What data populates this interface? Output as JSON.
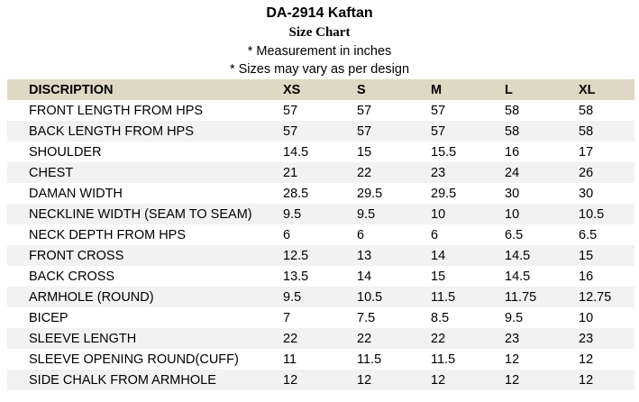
{
  "header": {
    "title": "DA-2914 Kaftan",
    "subtitle": "Size Chart",
    "note_measurement": "* Measurement in inches",
    "note_sizes": "* Sizes may vary as per design"
  },
  "table": {
    "columns": [
      "DISCRIPTION",
      "XS",
      "S",
      "M",
      "L",
      "XL"
    ],
    "rows": [
      [
        "FRONT LENGTH FROM HPS",
        "57",
        "57",
        "57",
        "58",
        "58"
      ],
      [
        "BACK LENGTH FROM HPS",
        "57",
        "57",
        "57",
        "58",
        "58"
      ],
      [
        "SHOULDER",
        "14.5",
        "15",
        "15.5",
        "16",
        "17"
      ],
      [
        "CHEST",
        "21",
        "22",
        "23",
        "24",
        "26"
      ],
      [
        "DAMAN WIDTH",
        "28.5",
        "29.5",
        "29.5",
        "30",
        "30"
      ],
      [
        "NECKLINE WIDTH (SEAM TO SEAM)",
        "9.5",
        "9.5",
        "10",
        "10",
        "10.5"
      ],
      [
        "NECK DEPTH FROM HPS",
        "6",
        "6",
        "6",
        "6.5",
        "6.5"
      ],
      [
        "FRONT CROSS",
        "12.5",
        "13",
        "14",
        "14.5",
        "15"
      ],
      [
        "BACK CROSS",
        "13.5",
        "14",
        "15",
        "14.5",
        "16"
      ],
      [
        "ARMHOLE (ROUND)",
        "9.5",
        "10.5",
        "11.5",
        "11.75",
        "12.75"
      ],
      [
        "BICEP",
        "7",
        "7.5",
        "8.5",
        "9.5",
        "10"
      ],
      [
        "SLEEVE LENGTH",
        "22",
        "22",
        "22",
        "23",
        "23"
      ],
      [
        "SLEEVE OPENING ROUND(CUFF)",
        "11",
        "11.5",
        "11.5",
        "12",
        "12"
      ],
      [
        "SIDE CHALK FROM ARMHOLE",
        "12",
        "12",
        "12",
        "12",
        "12"
      ]
    ]
  },
  "colors": {
    "header_row_bg": "#ddd9c4",
    "stripe_bg": "#f2f2f2"
  }
}
